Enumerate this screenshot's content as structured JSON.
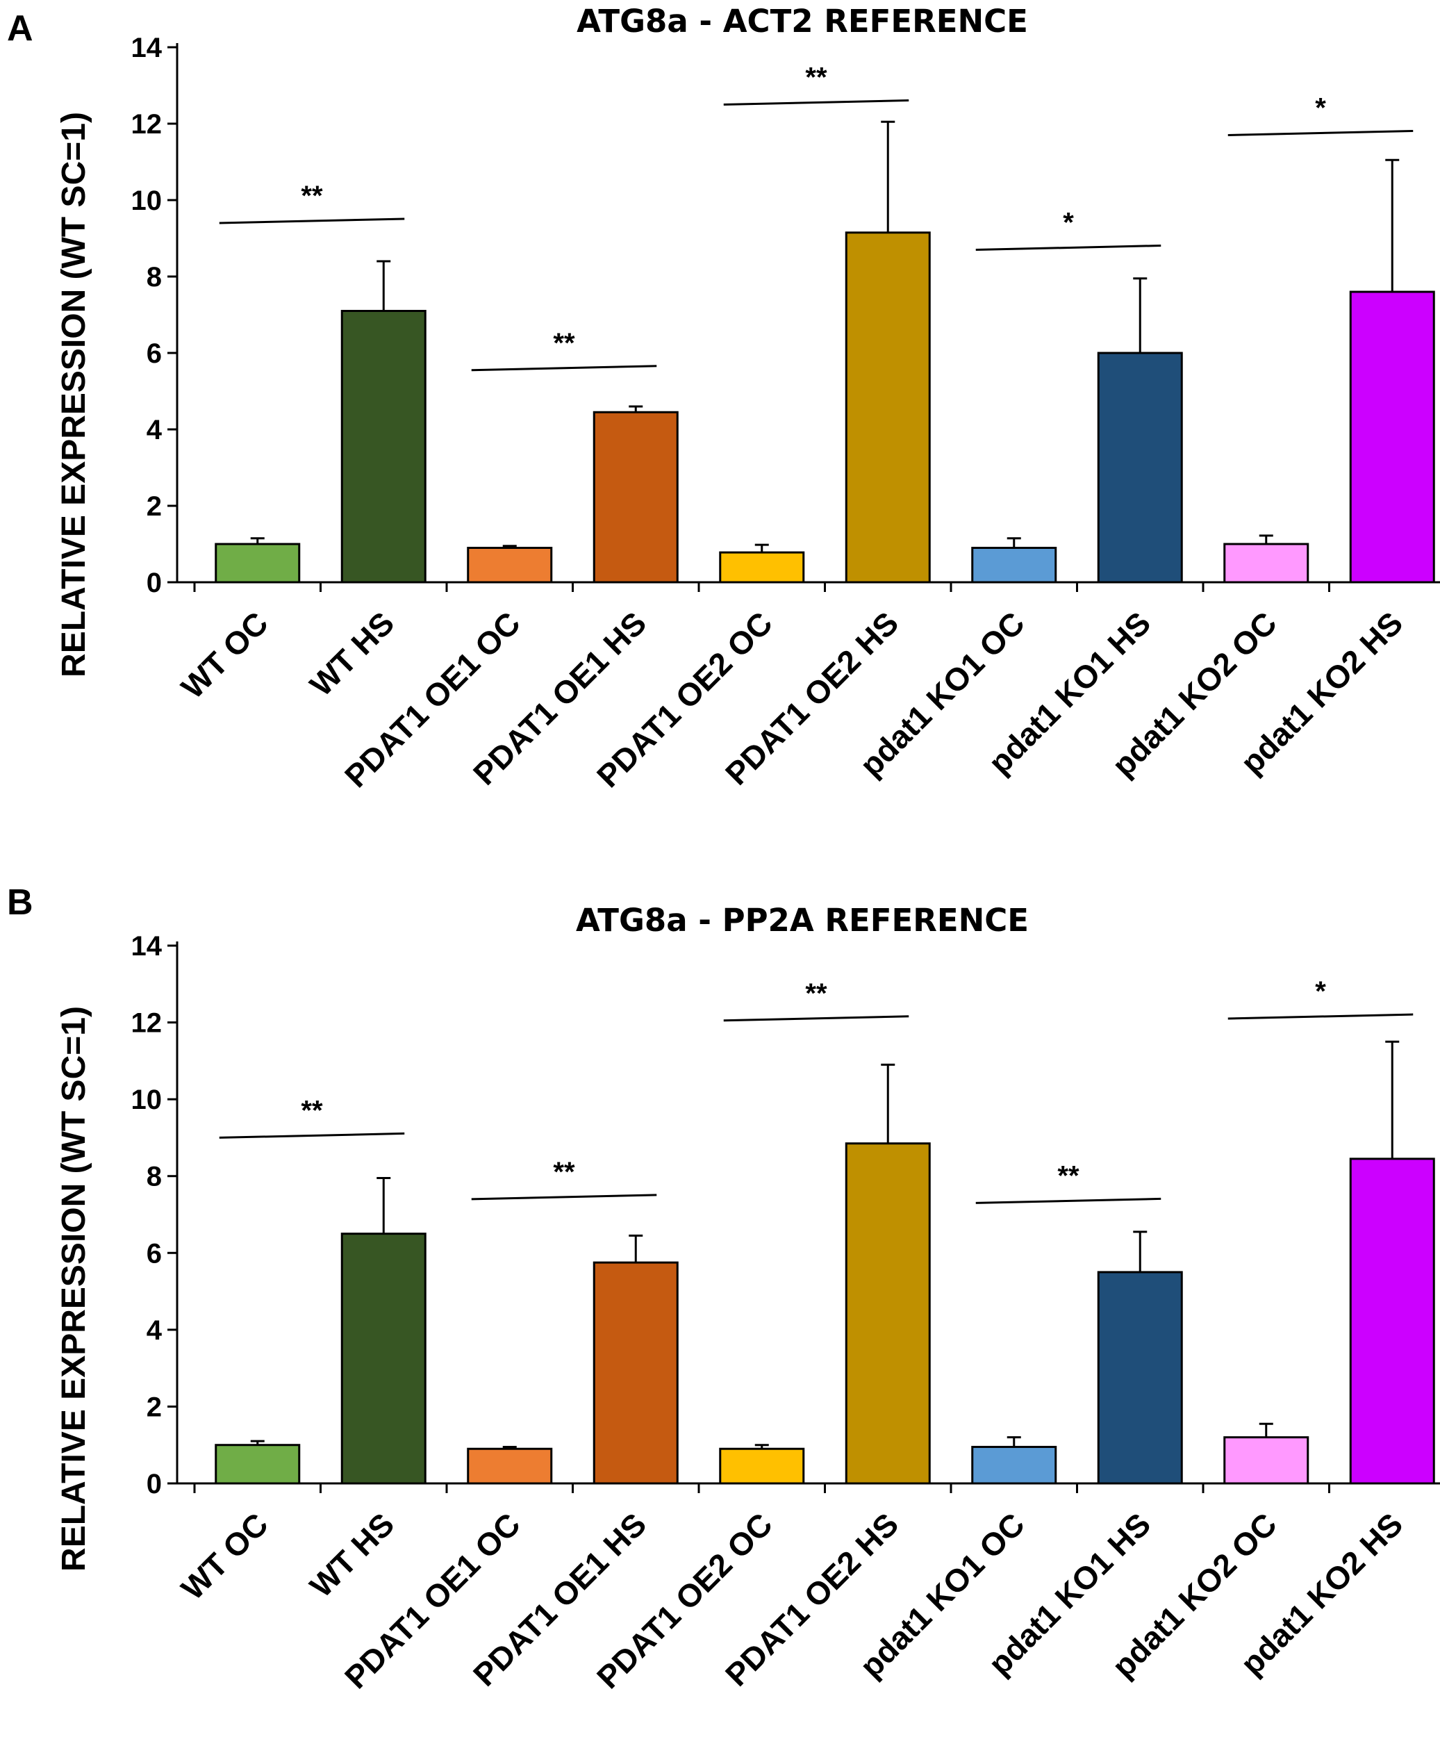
{
  "chart_data": [
    {
      "panel": "A",
      "type": "bar",
      "title": "ATG8a - ACT2 REFERENCE",
      "ylabel": "RELATIVE EXPRESSION (WT SC=1)",
      "xlabel": "",
      "ylim": [
        0,
        14
      ],
      "yticks": [
        0,
        2,
        4,
        6,
        8,
        10,
        12,
        14
      ],
      "categories": [
        "WT OC",
        "WT HS",
        "PDAT1 OE1 OC",
        "PDAT1 OE1 HS",
        "PDAT1 OE2 OC",
        "PDAT1 OE2 HS",
        "pdat1 KO1 OC",
        "pdat1 KO1 HS",
        "pdat1 KO2 OC",
        "pdat1 KO2 HS"
      ],
      "values": [
        1.0,
        7.1,
        0.9,
        4.45,
        0.78,
        9.15,
        0.9,
        6.0,
        1.0,
        7.6
      ],
      "errors": [
        0.15,
        1.3,
        0.05,
        0.15,
        0.2,
        2.9,
        0.25,
        1.95,
        0.22,
        3.45
      ],
      "colors": [
        "#70ad47",
        "#375623",
        "#ed7d31",
        "#c55a11",
        "#ffc000",
        "#bf9000",
        "#5b9bd5",
        "#1f4e79",
        "#ff99ff",
        "#cc00ff"
      ],
      "grid": false,
      "significance": [
        {
          "pair": [
            0,
            1
          ],
          "label": "**",
          "y": 9.4
        },
        {
          "pair": [
            2,
            3
          ],
          "label": "**",
          "y": 5.55
        },
        {
          "pair": [
            4,
            5
          ],
          "label": "**",
          "y": 12.5
        },
        {
          "pair": [
            6,
            7
          ],
          "label": "*",
          "y": 8.7
        },
        {
          "pair": [
            8,
            9
          ],
          "label": "*",
          "y": 11.7
        }
      ]
    },
    {
      "panel": "B",
      "type": "bar",
      "title": "ATG8a - PP2A REFERENCE",
      "ylabel": "RELATIVE EXPRESSION (WT SC=1)",
      "xlabel": "",
      "ylim": [
        0,
        14
      ],
      "yticks": [
        0,
        2,
        4,
        6,
        8,
        10,
        12,
        14
      ],
      "categories": [
        "WT OC",
        "WT HS",
        "PDAT1 OE1 OC",
        "PDAT1 OE1 HS",
        "PDAT1 OE2 OC",
        "PDAT1 OE2 HS",
        "pdat1 KO1 OC",
        "pdat1 KO1 HS",
        "pdat1 KO2 OC",
        "pdat1 KO2 HS"
      ],
      "values": [
        1.0,
        6.5,
        0.9,
        5.75,
        0.9,
        8.85,
        0.95,
        5.5,
        1.2,
        8.45
      ],
      "errors": [
        0.1,
        1.45,
        0.05,
        0.7,
        0.1,
        2.05,
        0.25,
        1.05,
        0.35,
        3.05
      ],
      "colors": [
        "#70ad47",
        "#375623",
        "#ed7d31",
        "#c55a11",
        "#ffc000",
        "#bf9000",
        "#5b9bd5",
        "#1f4e79",
        "#ff99ff",
        "#cc00ff"
      ],
      "grid": false,
      "significance": [
        {
          "pair": [
            0,
            1
          ],
          "label": "**",
          "y": 9.0
        },
        {
          "pair": [
            2,
            3
          ],
          "label": "**",
          "y": 7.4
        },
        {
          "pair": [
            4,
            5
          ],
          "label": "**",
          "y": 12.05
        },
        {
          "pair": [
            6,
            7
          ],
          "label": "**",
          "y": 7.3
        },
        {
          "pair": [
            8,
            9
          ],
          "label": "*",
          "y": 12.1
        }
      ]
    }
  ]
}
